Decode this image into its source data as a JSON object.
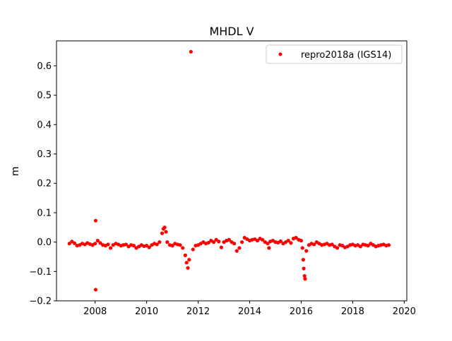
{
  "chart_data": {
    "type": "scatter",
    "title": "MHDL V",
    "xlabel": "",
    "ylabel": "m",
    "xlim": [
      2006.5,
      2020.1
    ],
    "ylim": [
      -0.2,
      0.685
    ],
    "xticks": [
      2008,
      2010,
      2012,
      2014,
      2016,
      2018,
      2020
    ],
    "xtick_labels": [
      "2008",
      "2010",
      "2012",
      "2014",
      "2016",
      "2018",
      "2020"
    ],
    "yticks": [
      -0.2,
      -0.1,
      0.0,
      0.1,
      0.2,
      0.3,
      0.4,
      0.5,
      0.6
    ],
    "ytick_labels": [
      "−0.2",
      "−0.1",
      "0.0",
      "0.1",
      "0.2",
      "0.3",
      "0.4",
      "0.5",
      "0.6"
    ],
    "grid": false,
    "legend_position": "top-right",
    "series": [
      {
        "name": "repro2018a (IGS14)",
        "color": "#ff0000",
        "marker": "circle",
        "points": [
          [
            2007.0,
            -0.005
          ],
          [
            2007.1,
            0.002
          ],
          [
            2007.2,
            -0.004
          ],
          [
            2007.3,
            -0.012
          ],
          [
            2007.4,
            -0.01
          ],
          [
            2007.5,
            -0.005
          ],
          [
            2007.6,
            -0.008
          ],
          [
            2007.7,
            -0.003
          ],
          [
            2007.8,
            -0.007
          ],
          [
            2007.9,
            -0.01
          ],
          [
            2008.0,
            -0.005
          ],
          [
            2008.02,
            0.073
          ],
          [
            2008.02,
            -0.162
          ],
          [
            2008.1,
            0.005
          ],
          [
            2008.2,
            -0.003
          ],
          [
            2008.3,
            -0.01
          ],
          [
            2008.4,
            -0.012
          ],
          [
            2008.5,
            -0.008
          ],
          [
            2008.6,
            -0.02
          ],
          [
            2008.7,
            -0.01
          ],
          [
            2008.8,
            -0.005
          ],
          [
            2008.9,
            -0.008
          ],
          [
            2009.0,
            -0.012
          ],
          [
            2009.1,
            -0.01
          ],
          [
            2009.2,
            -0.008
          ],
          [
            2009.3,
            -0.015
          ],
          [
            2009.4,
            -0.01
          ],
          [
            2009.5,
            -0.012
          ],
          [
            2009.6,
            -0.02
          ],
          [
            2009.7,
            -0.015
          ],
          [
            2009.8,
            -0.01
          ],
          [
            2009.9,
            -0.014
          ],
          [
            2010.0,
            -0.012
          ],
          [
            2010.1,
            -0.018
          ],
          [
            2010.2,
            -0.01
          ],
          [
            2010.3,
            -0.005
          ],
          [
            2010.4,
            -0.008
          ],
          [
            2010.5,
            0.0
          ],
          [
            2010.6,
            0.03
          ],
          [
            2010.65,
            0.045
          ],
          [
            2010.7,
            0.05
          ],
          [
            2010.75,
            0.035
          ],
          [
            2010.8,
            0.0
          ],
          [
            2010.9,
            -0.01
          ],
          [
            2011.0,
            -0.012
          ],
          [
            2011.1,
            -0.005
          ],
          [
            2011.2,
            -0.008
          ],
          [
            2011.3,
            -0.01
          ],
          [
            2011.4,
            -0.02
          ],
          [
            2011.5,
            -0.045
          ],
          [
            2011.55,
            -0.07
          ],
          [
            2011.6,
            -0.088
          ],
          [
            2011.65,
            -0.06
          ],
          [
            2011.72,
            0.648
          ],
          [
            2011.8,
            -0.025
          ],
          [
            2011.9,
            -0.012
          ],
          [
            2012.0,
            -0.01
          ],
          [
            2012.1,
            -0.005
          ],
          [
            2012.2,
            0.0
          ],
          [
            2012.3,
            -0.005
          ],
          [
            2012.4,
            -0.002
          ],
          [
            2012.5,
            0.005
          ],
          [
            2012.6,
            0.0
          ],
          [
            2012.7,
            0.008
          ],
          [
            2012.8,
            0.002
          ],
          [
            2012.9,
            -0.018
          ],
          [
            2013.0,
            0.0
          ],
          [
            2013.1,
            0.005
          ],
          [
            2013.2,
            0.008
          ],
          [
            2013.3,
            0.0
          ],
          [
            2013.4,
            -0.005
          ],
          [
            2013.5,
            -0.03
          ],
          [
            2013.6,
            -0.02
          ],
          [
            2013.7,
            0.0
          ],
          [
            2013.8,
            0.015
          ],
          [
            2013.9,
            0.01
          ],
          [
            2014.0,
            0.005
          ],
          [
            2014.1,
            0.008
          ],
          [
            2014.2,
            0.01
          ],
          [
            2014.3,
            0.005
          ],
          [
            2014.4,
            0.012
          ],
          [
            2014.5,
            0.008
          ],
          [
            2014.6,
            0.0
          ],
          [
            2014.7,
            -0.005
          ],
          [
            2014.75,
            -0.02
          ],
          [
            2014.8,
            0.002
          ],
          [
            2014.9,
            0.005
          ],
          [
            2015.0,
            0.0
          ],
          [
            2015.1,
            -0.002
          ],
          [
            2015.2,
            0.003
          ],
          [
            2015.3,
            -0.005
          ],
          [
            2015.4,
            0.0
          ],
          [
            2015.5,
            0.005
          ],
          [
            2015.6,
            -0.003
          ],
          [
            2015.7,
            0.012
          ],
          [
            2015.8,
            0.015
          ],
          [
            2015.9,
            0.008
          ],
          [
            2016.0,
            0.005
          ],
          [
            2016.05,
            -0.02
          ],
          [
            2016.08,
            -0.06
          ],
          [
            2016.1,
            -0.09
          ],
          [
            2016.13,
            -0.115
          ],
          [
            2016.15,
            -0.125
          ],
          [
            2016.2,
            -0.03
          ],
          [
            2016.3,
            -0.01
          ],
          [
            2016.4,
            -0.005
          ],
          [
            2016.5,
            -0.008
          ],
          [
            2016.6,
            0.0
          ],
          [
            2016.7,
            -0.005
          ],
          [
            2016.8,
            -0.01
          ],
          [
            2016.9,
            -0.008
          ],
          [
            2017.0,
            -0.005
          ],
          [
            2017.1,
            -0.01
          ],
          [
            2017.2,
            -0.008
          ],
          [
            2017.3,
            -0.015
          ],
          [
            2017.4,
            -0.02
          ],
          [
            2017.5,
            -0.01
          ],
          [
            2017.6,
            -0.012
          ],
          [
            2017.7,
            -0.018
          ],
          [
            2017.8,
            -0.015
          ],
          [
            2017.9,
            -0.01
          ],
          [
            2018.0,
            -0.008
          ],
          [
            2018.1,
            -0.012
          ],
          [
            2018.2,
            -0.01
          ],
          [
            2018.3,
            -0.015
          ],
          [
            2018.4,
            -0.008
          ],
          [
            2018.5,
            -0.01
          ],
          [
            2018.6,
            -0.012
          ],
          [
            2018.7,
            -0.005
          ],
          [
            2018.8,
            -0.01
          ],
          [
            2018.9,
            -0.015
          ],
          [
            2019.0,
            -0.012
          ],
          [
            2019.1,
            -0.01
          ],
          [
            2019.2,
            -0.008
          ],
          [
            2019.3,
            -0.012
          ],
          [
            2019.4,
            -0.01
          ]
        ]
      }
    ]
  }
}
